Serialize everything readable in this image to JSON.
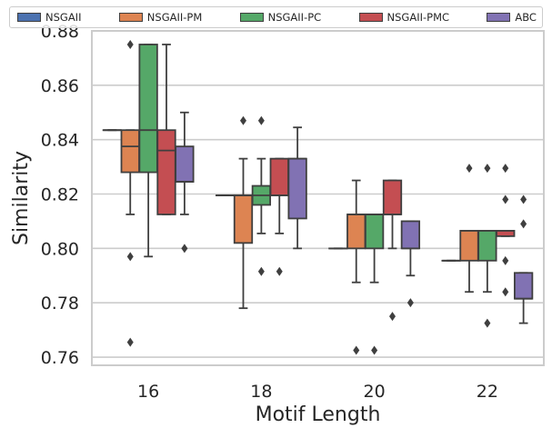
{
  "chart_data": {
    "type": "box",
    "xlabel": "Motif Length",
    "ylabel": "Similarity",
    "categories": [
      "16",
      "18",
      "20",
      "22"
    ],
    "ylim": [
      0.757,
      0.88
    ],
    "yticks": [
      0.76,
      0.78,
      0.8,
      0.82,
      0.84,
      0.86,
      0.88
    ],
    "ytick_labels": [
      "0.76",
      "0.78",
      "0.80",
      "0.82",
      "0.84",
      "0.86",
      "0.88"
    ],
    "grid": true,
    "legend_position": "top",
    "series": [
      {
        "name": "NSGAII",
        "color": "#4c72b0",
        "boxes": [
          {
            "whislo": 0.8435,
            "q1": 0.8435,
            "med": 0.8435,
            "q3": 0.8435,
            "whishi": 0.8435,
            "fliers": []
          },
          {
            "whislo": 0.8195,
            "q1": 0.8195,
            "med": 0.8195,
            "q3": 0.8195,
            "whishi": 0.8195,
            "fliers": []
          },
          {
            "whislo": 0.8,
            "q1": 0.8,
            "med": 0.8,
            "q3": 0.8,
            "whishi": 0.8,
            "fliers": []
          },
          {
            "whislo": 0.7955,
            "q1": 0.7955,
            "med": 0.7955,
            "q3": 0.7955,
            "whishi": 0.7955,
            "fliers": []
          }
        ]
      },
      {
        "name": "NSGAII-PM",
        "color": "#dd8452",
        "boxes": [
          {
            "whislo": 0.8125,
            "q1": 0.828,
            "med": 0.8375,
            "q3": 0.8435,
            "whishi": 0.8435,
            "fliers": [
              0.875,
              0.797,
              0.7655
            ]
          },
          {
            "whislo": 0.778,
            "q1": 0.802,
            "med": 0.8195,
            "q3": 0.8195,
            "whishi": 0.833,
            "fliers": [
              0.847
            ]
          },
          {
            "whislo": 0.7875,
            "q1": 0.8,
            "med": 0.8125,
            "q3": 0.8125,
            "whishi": 0.825,
            "fliers": [
              0.7625
            ]
          },
          {
            "whislo": 0.784,
            "q1": 0.7955,
            "med": 0.8065,
            "q3": 0.8065,
            "whishi": 0.8065,
            "fliers": [
              0.8295
            ]
          }
        ]
      },
      {
        "name": "NSGAII-PC",
        "color": "#55a868",
        "boxes": [
          {
            "whislo": 0.797,
            "q1": 0.828,
            "med": 0.8435,
            "q3": 0.875,
            "whishi": 0.875,
            "fliers": []
          },
          {
            "whislo": 0.8055,
            "q1": 0.816,
            "med": 0.8195,
            "q3": 0.823,
            "whishi": 0.833,
            "fliers": [
              0.847,
              0.7915
            ]
          },
          {
            "whislo": 0.7875,
            "q1": 0.8,
            "med": 0.8125,
            "q3": 0.8125,
            "whishi": 0.8125,
            "fliers": [
              0.7625
            ]
          },
          {
            "whislo": 0.784,
            "q1": 0.7955,
            "med": 0.8065,
            "q3": 0.8065,
            "whishi": 0.8065,
            "fliers": [
              0.8295,
              0.7725
            ]
          }
        ]
      },
      {
        "name": "NSGAII-PMC",
        "color": "#c44e52",
        "boxes": [
          {
            "whislo": 0.8125,
            "q1": 0.8125,
            "med": 0.836,
            "q3": 0.8435,
            "whishi": 0.875,
            "fliers": []
          },
          {
            "whislo": 0.8055,
            "q1": 0.8195,
            "med": 0.8195,
            "q3": 0.833,
            "whishi": 0.833,
            "fliers": [
              0.7915
            ]
          },
          {
            "whislo": 0.8,
            "q1": 0.8125,
            "med": 0.8125,
            "q3": 0.825,
            "whishi": 0.825,
            "fliers": [
              0.775
            ]
          },
          {
            "whislo": 0.8045,
            "q1": 0.8045,
            "med": 0.8065,
            "q3": 0.8065,
            "whishi": 0.8065,
            "fliers": [
              0.8295,
              0.818,
              0.7955,
              0.784
            ]
          }
        ]
      },
      {
        "name": "ABC",
        "color": "#8172b3",
        "boxes": [
          {
            "whislo": 0.8125,
            "q1": 0.8245,
            "med": 0.8245,
            "q3": 0.8375,
            "whishi": 0.85,
            "fliers": [
              0.8
            ]
          },
          {
            "whislo": 0.8,
            "q1": 0.811,
            "med": 0.833,
            "q3": 0.833,
            "whishi": 0.8445,
            "fliers": []
          },
          {
            "whislo": 0.79,
            "q1": 0.8,
            "med": 0.8,
            "q3": 0.81,
            "whishi": 0.81,
            "fliers": [
              0.78
            ]
          },
          {
            "whislo": 0.7725,
            "q1": 0.7815,
            "med": 0.7815,
            "q3": 0.791,
            "whishi": 0.791,
            "fliers": [
              0.818,
              0.809
            ]
          }
        ]
      }
    ]
  }
}
